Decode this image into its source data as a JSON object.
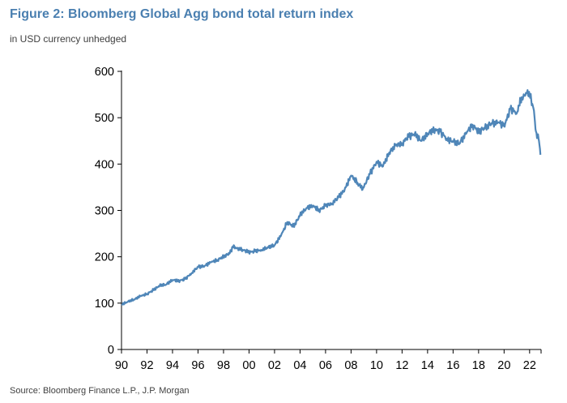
{
  "title": "Figure 2: Bloomberg Global Agg bond total return index",
  "subtitle": "in USD currency unhedged",
  "source": "Source: Bloomberg Finance L.P., J.P. Morgan",
  "colors": {
    "title": "#4a7fb0",
    "line": "#4f86b8",
    "axis": "#000000"
  },
  "chart_data": {
    "type": "line",
    "title": "",
    "xlabel": "",
    "ylabel": "",
    "grid": false,
    "legend": "none",
    "xlim": [
      1990,
      2022.9
    ],
    "ylim": [
      0,
      600
    ],
    "x_ticks": [
      "90",
      "92",
      "94",
      "96",
      "98",
      "00",
      "02",
      "04",
      "06",
      "08",
      "10",
      "12",
      "14",
      "16",
      "18",
      "20",
      "22"
    ],
    "y_ticks": [
      "0",
      "100",
      "200",
      "300",
      "400",
      "500",
      "600"
    ],
    "series": [
      {
        "x": [
          1990.0,
          1990.5,
          1991.0,
          1991.5,
          1992.0,
          1992.5,
          1993.0,
          1993.5,
          1994.0,
          1994.5,
          1995.0,
          1995.5,
          1996.0,
          1996.5,
          1997.0,
          1997.5,
          1998.0,
          1998.5,
          1998.8,
          1999.0,
          1999.5,
          2000.0,
          2000.5,
          2001.0,
          2001.5,
          2002.0,
          2002.5,
          2003.0,
          2003.5,
          2004.0,
          2004.5,
          2005.0,
          2005.5,
          2006.0,
          2006.5,
          2007.0,
          2007.5,
          2008.0,
          2008.5,
          2008.9,
          2009.5,
          2010.0,
          2010.5,
          2011.0,
          2011.5,
          2012.0,
          2012.5,
          2013.0,
          2013.5,
          2014.0,
          2014.5,
          2015.0,
          2015.5,
          2016.0,
          2016.5,
          2017.0,
          2017.5,
          2018.0,
          2018.5,
          2019.0,
          2019.5,
          2020.0,
          2020.2,
          2020.5,
          2021.0,
          2021.3,
          2021.5,
          2021.8,
          2022.0,
          2022.3,
          2022.5,
          2022.7,
          2022.85
        ],
        "values": [
          97,
          103,
          108,
          115,
          120,
          128,
          138,
          140,
          150,
          148,
          152,
          165,
          178,
          180,
          188,
          193,
          200,
          208,
          225,
          218,
          215,
          210,
          212,
          215,
          220,
          225,
          245,
          275,
          265,
          290,
          305,
          310,
          300,
          310,
          315,
          328,
          345,
          375,
          360,
          345,
          380,
          405,
          395,
          425,
          440,
          445,
          460,
          465,
          450,
          465,
          475,
          470,
          455,
          448,
          445,
          465,
          485,
          470,
          478,
          488,
          490,
          485,
          495,
          520,
          510,
          540,
          545,
          555,
          550,
          520,
          470,
          455,
          420
        ]
      }
    ]
  }
}
